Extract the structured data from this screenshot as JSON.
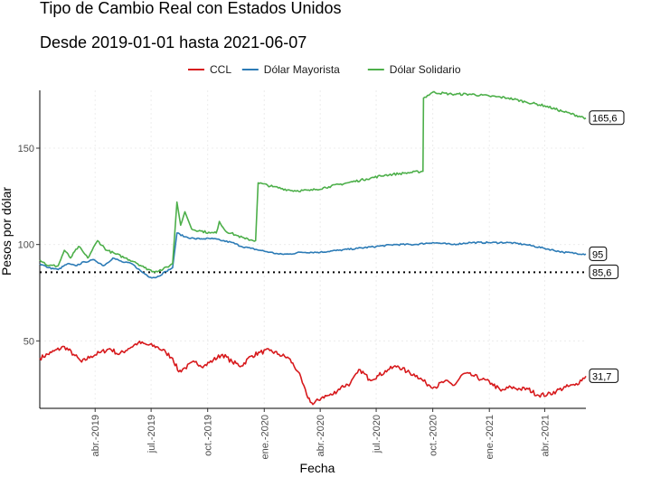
{
  "chart_data": {
    "type": "line",
    "title": "Tipo de Cambio Real con Estados Unidos",
    "subtitle": "Desde 2019-01-01 hasta 2021-06-07",
    "xlabel": "Fecha",
    "ylabel": "Pesos por dólar",
    "xlim": [
      "2019-01-01",
      "2021-06-07"
    ],
    "ylim": [
      15,
      180
    ],
    "y_ticks": [
      50,
      100,
      150
    ],
    "x_ticks": [
      {
        "date": "2019-04-01",
        "label": "abr.-2019"
      },
      {
        "date": "2019-07-01",
        "label": "jul.-2019"
      },
      {
        "date": "2019-10-01",
        "label": "oct.-2019"
      },
      {
        "date": "2020-01-01",
        "label": "ene.-2020"
      },
      {
        "date": "2020-04-01",
        "label": "abr.-2020"
      },
      {
        "date": "2020-07-01",
        "label": "jul.-2020"
      },
      {
        "date": "2020-10-01",
        "label": "oct.-2020"
      },
      {
        "date": "2021-01-01",
        "label": "ene.-2021"
      },
      {
        "date": "2021-04-01",
        "label": "abr.-2021"
      }
    ],
    "grid": true,
    "legend_position": "top",
    "reference_line": {
      "value": 85.6,
      "label": "85,6",
      "style": "dotted"
    },
    "series": [
      {
        "name": "CCL",
        "color": "#d7191c",
        "end_label": "31,7",
        "points": [
          [
            "2019-01-01",
            41
          ],
          [
            "2019-01-20",
            44
          ],
          [
            "2019-02-10",
            47
          ],
          [
            "2019-02-25",
            43
          ],
          [
            "2019-03-10",
            39
          ],
          [
            "2019-03-25",
            42
          ],
          [
            "2019-04-10",
            44
          ],
          [
            "2019-04-25",
            46
          ],
          [
            "2019-05-10",
            43
          ],
          [
            "2019-05-25",
            46
          ],
          [
            "2019-06-10",
            49
          ],
          [
            "2019-06-25",
            48
          ],
          [
            "2019-07-10",
            47
          ],
          [
            "2019-07-25",
            44
          ],
          [
            "2019-08-05",
            41
          ],
          [
            "2019-08-15",
            34
          ],
          [
            "2019-08-25",
            36
          ],
          [
            "2019-09-10",
            39
          ],
          [
            "2019-09-25",
            37
          ],
          [
            "2019-10-10",
            40
          ],
          [
            "2019-10-25",
            43
          ],
          [
            "2019-11-10",
            39
          ],
          [
            "2019-11-25",
            37
          ],
          [
            "2019-12-10",
            42
          ],
          [
            "2019-12-25",
            44
          ],
          [
            "2020-01-10",
            45
          ],
          [
            "2020-01-25",
            43
          ],
          [
            "2020-02-10",
            41
          ],
          [
            "2020-02-25",
            34
          ],
          [
            "2020-03-10",
            22
          ],
          [
            "2020-03-20",
            17
          ],
          [
            "2020-04-05",
            21
          ],
          [
            "2020-04-20",
            22
          ],
          [
            "2020-05-05",
            26
          ],
          [
            "2020-05-20",
            28
          ],
          [
            "2020-06-05",
            35
          ],
          [
            "2020-06-20",
            30
          ],
          [
            "2020-07-05",
            32
          ],
          [
            "2020-07-20",
            35
          ],
          [
            "2020-08-05",
            37
          ],
          [
            "2020-08-20",
            34
          ],
          [
            "2020-09-05",
            32
          ],
          [
            "2020-09-20",
            28
          ],
          [
            "2020-10-05",
            26
          ],
          [
            "2020-10-20",
            29
          ],
          [
            "2020-11-05",
            27
          ],
          [
            "2020-11-20",
            33
          ],
          [
            "2020-12-05",
            32
          ],
          [
            "2020-12-20",
            30
          ],
          [
            "2021-01-05",
            28
          ],
          [
            "2021-01-20",
            24
          ],
          [
            "2021-02-05",
            26
          ],
          [
            "2021-02-20",
            25
          ],
          [
            "2021-03-05",
            25
          ],
          [
            "2021-03-20",
            22
          ],
          [
            "2021-04-05",
            22
          ],
          [
            "2021-04-20",
            24
          ],
          [
            "2021-05-05",
            26
          ],
          [
            "2021-05-20",
            27
          ],
          [
            "2021-06-07",
            31.7
          ]
        ]
      },
      {
        "name": "Dólar Mayorista",
        "color": "#2c7bb6",
        "end_label": "95",
        "points": [
          [
            "2019-01-01",
            90
          ],
          [
            "2019-01-15",
            88
          ],
          [
            "2019-01-31",
            87
          ],
          [
            "2019-02-15",
            90
          ],
          [
            "2019-02-28",
            89
          ],
          [
            "2019-03-15",
            91
          ],
          [
            "2019-03-31",
            92
          ],
          [
            "2019-04-15",
            89
          ],
          [
            "2019-04-30",
            93
          ],
          [
            "2019-05-15",
            91
          ],
          [
            "2019-05-31",
            90
          ],
          [
            "2019-06-15",
            86
          ],
          [
            "2019-06-30",
            83
          ],
          [
            "2019-07-10",
            83
          ],
          [
            "2019-07-25",
            86
          ],
          [
            "2019-08-05",
            88
          ],
          [
            "2019-08-12",
            106
          ],
          [
            "2019-08-25",
            104
          ],
          [
            "2019-09-10",
            103
          ],
          [
            "2019-09-25",
            103
          ],
          [
            "2019-10-10",
            103
          ],
          [
            "2019-10-25",
            102
          ],
          [
            "2019-11-10",
            101
          ],
          [
            "2019-11-25",
            99
          ],
          [
            "2019-12-10",
            98
          ],
          [
            "2019-12-25",
            97
          ],
          [
            "2020-01-10",
            96
          ],
          [
            "2020-01-25",
            95
          ],
          [
            "2020-02-10",
            95
          ],
          [
            "2020-03-01",
            96
          ],
          [
            "2020-04-01",
            96
          ],
          [
            "2020-05-01",
            97
          ],
          [
            "2020-06-01",
            98
          ],
          [
            "2020-07-01",
            99
          ],
          [
            "2020-08-01",
            100
          ],
          [
            "2020-09-01",
            100
          ],
          [
            "2020-10-01",
            101
          ],
          [
            "2020-11-01",
            100
          ],
          [
            "2020-12-01",
            101
          ],
          [
            "2021-01-01",
            101
          ],
          [
            "2021-02-01",
            101
          ],
          [
            "2021-03-01",
            100
          ],
          [
            "2021-04-01",
            98
          ],
          [
            "2021-05-01",
            96
          ],
          [
            "2021-06-07",
            95
          ]
        ]
      },
      {
        "name": "Dólar Solidario",
        "color": "#4daf4a",
        "end_label": "165,6",
        "points": [
          [
            "2019-01-01",
            92
          ],
          [
            "2019-01-15",
            89
          ],
          [
            "2019-01-31",
            89
          ],
          [
            "2019-02-10",
            97
          ],
          [
            "2019-02-20",
            93
          ],
          [
            "2019-03-05",
            99
          ],
          [
            "2019-03-20",
            93
          ],
          [
            "2019-04-05",
            102
          ],
          [
            "2019-04-20",
            97
          ],
          [
            "2019-05-05",
            95
          ],
          [
            "2019-05-20",
            93
          ],
          [
            "2019-06-05",
            91
          ],
          [
            "2019-06-20",
            88
          ],
          [
            "2019-07-05",
            86
          ],
          [
            "2019-07-20",
            87
          ],
          [
            "2019-08-05",
            90
          ],
          [
            "2019-08-12",
            122
          ],
          [
            "2019-08-18",
            110
          ],
          [
            "2019-08-25",
            117
          ],
          [
            "2019-09-05",
            108
          ],
          [
            "2019-09-20",
            107
          ],
          [
            "2019-10-05",
            106
          ],
          [
            "2019-10-15",
            106
          ],
          [
            "2019-10-20",
            112
          ],
          [
            "2019-10-30",
            107
          ],
          [
            "2019-11-15",
            105
          ],
          [
            "2019-12-01",
            103
          ],
          [
            "2019-12-18",
            102
          ],
          [
            "2019-12-22",
            132
          ],
          [
            "2020-01-15",
            130
          ],
          [
            "2020-02-15",
            128
          ],
          [
            "2020-03-15",
            128
          ],
          [
            "2020-04-15",
            130
          ],
          [
            "2020-05-15",
            132
          ],
          [
            "2020-06-15",
            134
          ],
          [
            "2020-07-15",
            136
          ],
          [
            "2020-08-15",
            137
          ],
          [
            "2020-09-15",
            138
          ],
          [
            "2020-09-16",
            176
          ],
          [
            "2020-10-01",
            179
          ],
          [
            "2020-11-01",
            178
          ],
          [
            "2020-12-01",
            178
          ],
          [
            "2021-01-01",
            177
          ],
          [
            "2021-02-01",
            176
          ],
          [
            "2021-03-01",
            174
          ],
          [
            "2021-04-01",
            172
          ],
          [
            "2021-05-01",
            169
          ],
          [
            "2021-06-07",
            165.6
          ]
        ]
      }
    ]
  }
}
